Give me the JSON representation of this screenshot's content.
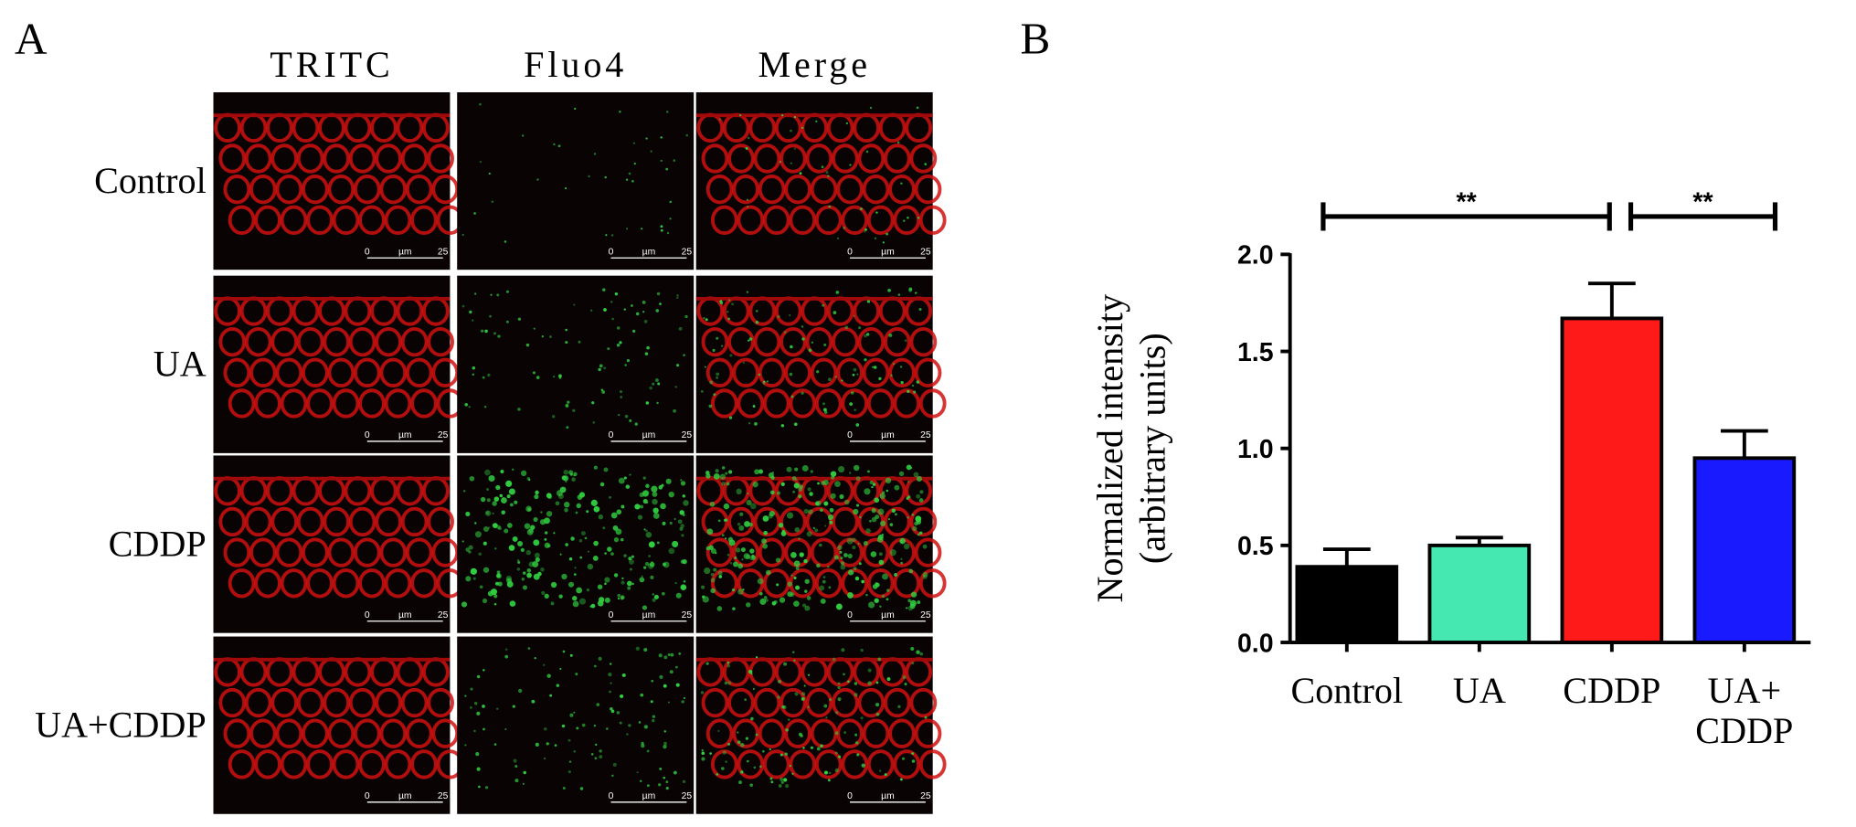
{
  "panel_a": {
    "label": "A",
    "columns": [
      "TRITC",
      "Fluo4",
      "Merge"
    ],
    "rows": [
      "Control",
      "UA",
      "CDDP",
      "UA+CDDP"
    ],
    "scale_bar": [
      "0",
      "µm",
      "25"
    ]
  },
  "chart_data": {
    "type": "bar",
    "panel_label": "B",
    "categories": [
      "Control",
      "UA",
      "CDDP",
      "UA+ CDDP"
    ],
    "values": [
      0.39,
      0.5,
      1.67,
      0.95
    ],
    "errors": [
      0.09,
      0.04,
      0.18,
      0.14
    ],
    "colors": [
      "#000000",
      "#44e8b0",
      "#ff1a1a",
      "#1a1aff"
    ],
    "ylabel": [
      "Normalized intensity",
      "(arbitrary units)"
    ],
    "ylim": [
      0,
      2
    ],
    "yticks": [
      {
        "value": 0,
        "label": "0.0"
      },
      {
        "value": 0.5,
        "label": "0.5"
      },
      {
        "value": 1,
        "label": "1.0"
      },
      {
        "value": 1.5,
        "label": "1.5"
      },
      {
        "value": 2,
        "label": "2.0"
      }
    ],
    "significance": [
      {
        "groups": [
          "Control",
          "CDDP"
        ],
        "label": "**"
      },
      {
        "groups": [
          "CDDP",
          "UA+ CDDP"
        ],
        "label": "**"
      }
    ]
  }
}
